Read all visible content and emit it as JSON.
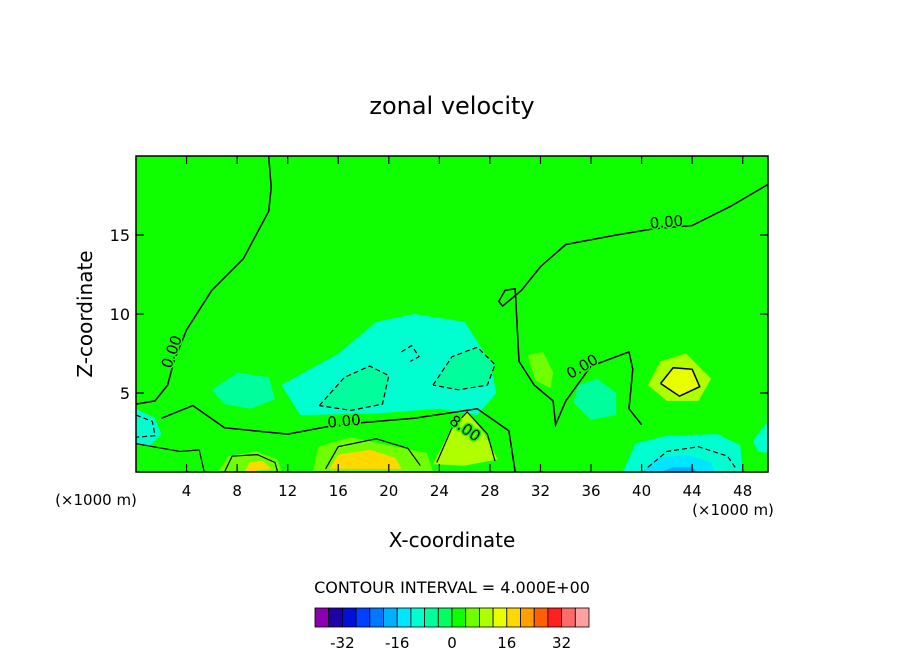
{
  "chart_data": {
    "type": "heatmap",
    "title": "zonal velocity",
    "xlabel": "X-coordinate",
    "ylabel": "Z-coordinate",
    "x_unit": "(×1000 m)",
    "xlim": [
      0,
      50
    ],
    "ylim": [
      0,
      20
    ],
    "x_ticks": [
      4,
      8,
      12,
      16,
      20,
      24,
      28,
      32,
      36,
      40,
      44,
      48
    ],
    "y_ticks": [
      5,
      10,
      15
    ],
    "contour_interval_text": "CONTOUR INTERVAL =  4.000E+00",
    "contour_labels": [
      {
        "text": "0.00",
        "x": 3.2,
        "y": 7.5
      },
      {
        "text": "0.00",
        "x": 16.5,
        "y": 2.9
      },
      {
        "text": "0.00",
        "x": 42.0,
        "y": 15.5
      },
      {
        "text": "0.00",
        "x": 35.5,
        "y": 6.4
      },
      {
        "text": "8.00",
        "x": 25.8,
        "y": 2.5
      }
    ],
    "colorbar": {
      "levels": [
        -36,
        -32,
        -28,
        -24,
        -20,
        -16,
        -12,
        -8,
        -4,
        0,
        4,
        8,
        12,
        16,
        20,
        24,
        28,
        32,
        36
      ],
      "tick_labels": [
        "-32",
        "-16",
        "0",
        "16",
        "32"
      ],
      "tick_values": [
        -32,
        -16,
        0,
        16,
        32
      ],
      "colors": [
        "#8a00b0",
        "#1e00a6",
        "#0010d8",
        "#0040ff",
        "#0078ff",
        "#00b0ff",
        "#00e6ff",
        "#00ffd0",
        "#00ff9c",
        "#00ff60",
        "#10ff00",
        "#70ff00",
        "#b0ff00",
        "#e8ff00",
        "#ffd800",
        "#ffa000",
        "#ff6000",
        "#ff2020",
        "#ff6a6a",
        "#ffa0a0"
      ]
    }
  }
}
